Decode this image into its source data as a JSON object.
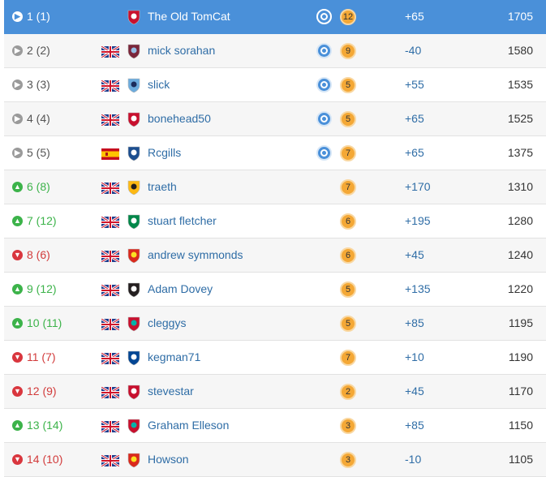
{
  "colors": {
    "highlight_row": "#4a90d9",
    "up": "#3cb34a",
    "down": "#d23b3b",
    "same": "#9a9a9a",
    "link": "#2f6da6",
    "count_badge": "#f4a836"
  },
  "rows": [
    {
      "rank": "1 (1)",
      "trend": "same",
      "flag": "none",
      "badge": "crawley-badge-icon",
      "name": "The Old TomCat",
      "chip": true,
      "count": "12",
      "delta": "+65",
      "points": "1705",
      "highlight": true
    },
    {
      "rank": "2 (2)",
      "trend": "same",
      "flag": "uk-flag-icon",
      "badge": "villa-badge-icon",
      "name": "mick sorahan",
      "chip": true,
      "count": "9",
      "delta": "-40",
      "points": "1580"
    },
    {
      "rank": "3 (3)",
      "trend": "same",
      "flag": "uk-flag-icon",
      "badge": "city-badge-icon",
      "name": "slick",
      "chip": true,
      "count": "5",
      "delta": "+55",
      "points": "1535"
    },
    {
      "rank": "4 (4)",
      "trend": "same",
      "flag": "uk-flag-icon",
      "badge": "crawley-badge-icon",
      "name": "bonehead50",
      "chip": true,
      "count": "5",
      "delta": "+65",
      "points": "1525"
    },
    {
      "rank": "5 (5)",
      "trend": "same",
      "flag": "spain-flag-icon",
      "badge": "striped-badge-icon",
      "name": "Rcgills",
      "chip": true,
      "count": "7",
      "delta": "+65",
      "points": "1375"
    },
    {
      "rank": "6 (8)",
      "trend": "up",
      "flag": "uk-flag-icon",
      "badge": "wolves-badge-icon",
      "name": "traeth",
      "chip": false,
      "count": "7",
      "delta": "+170",
      "points": "1310"
    },
    {
      "rank": "7 (12)",
      "trend": "up",
      "flag": "uk-flag-icon",
      "badge": "celtic-badge-icon",
      "name": "stuart fletcher",
      "chip": false,
      "count": "6",
      "delta": "+195",
      "points": "1280"
    },
    {
      "rank": "8 (6)",
      "trend": "down",
      "flag": "uk-flag-icon",
      "badge": "united-badge-icon",
      "name": "andrew symmonds",
      "chip": false,
      "count": "6",
      "delta": "+45",
      "points": "1240"
    },
    {
      "rank": "9 (12)",
      "trend": "up",
      "flag": "uk-flag-icon",
      "badge": "newcastle-badge-icon",
      "name": "Adam Dovey",
      "chip": false,
      "count": "5",
      "delta": "+135",
      "points": "1220"
    },
    {
      "rank": "10 (11)",
      "trend": "up",
      "flag": "uk-flag-icon",
      "badge": "liverpool-badge-icon",
      "name": "cleggys",
      "chip": false,
      "count": "5",
      "delta": "+85",
      "points": "1195"
    },
    {
      "rank": "11 (7)",
      "trend": "down",
      "flag": "uk-flag-icon",
      "badge": "chelsea-badge-icon",
      "name": "kegman71",
      "chip": false,
      "count": "7",
      "delta": "+10",
      "points": "1190"
    },
    {
      "rank": "12 (9)",
      "trend": "down",
      "flag": "uk-flag-icon",
      "badge": "crawley-badge-icon",
      "name": "stevestar",
      "chip": false,
      "count": "2",
      "delta": "+45",
      "points": "1170"
    },
    {
      "rank": "13 (14)",
      "trend": "up",
      "flag": "uk-flag-icon",
      "badge": "liverpool-badge-icon",
      "name": "Graham Elleson",
      "chip": false,
      "count": "3",
      "delta": "+85",
      "points": "1150"
    },
    {
      "rank": "14 (10)",
      "trend": "down",
      "flag": "uk-flag-icon",
      "badge": "united-badge-icon",
      "name": "Howson",
      "chip": false,
      "count": "3",
      "delta": "-10",
      "points": "1105"
    }
  ]
}
